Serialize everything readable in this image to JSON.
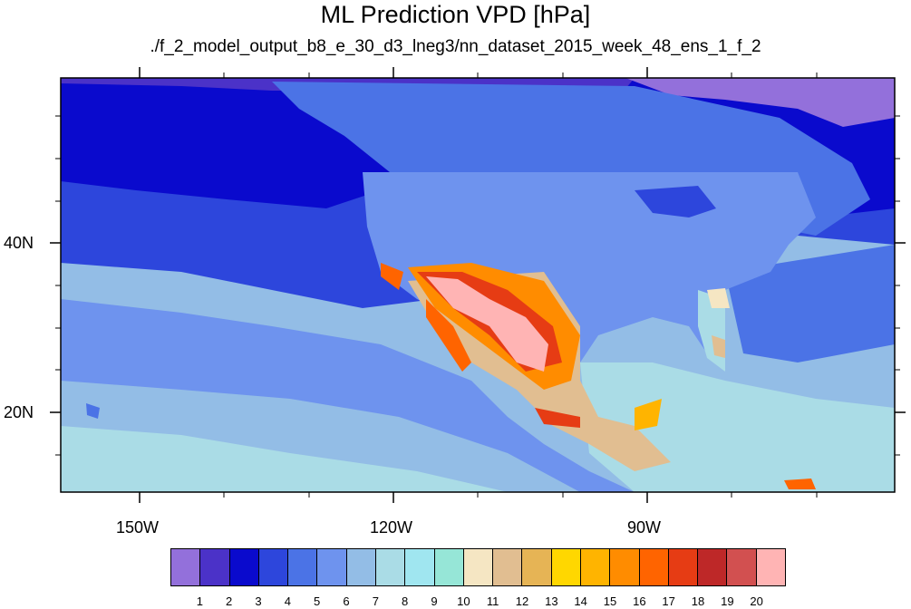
{
  "title": "ML Prediction VPD [hPa]",
  "subtitle": "./f_2_model_output_b8_e_30_d3_lneg3/nn_dataset_2015_week_48_ens_1_f_2",
  "map": {
    "lon_range": [
      -160,
      -64
    ],
    "lat_range": [
      10,
      59
    ],
    "x_ticks": [
      {
        "lon": -150,
        "label": "150W"
      },
      {
        "lon": -120,
        "label": "120W"
      },
      {
        "lon": -90,
        "label": "90W"
      }
    ],
    "y_ticks": [
      {
        "lat": 40,
        "label": "40N"
      },
      {
        "lat": 20,
        "label": "20N"
      }
    ]
  },
  "colorbar": {
    "colors": [
      "#9370db",
      "#4b32c8",
      "#0a0acd",
      "#2d46dc",
      "#4b73e6",
      "#6e93ee",
      "#93bde6",
      "#aadce6",
      "#a0e6f0",
      "#96e6d7",
      "#f5e6c3",
      "#e1be91",
      "#e6b455",
      "#ffd700",
      "#ffb400",
      "#ff8c00",
      "#ff6400",
      "#e63c14",
      "#be2828",
      "#d25050",
      "#ffb4b4"
    ],
    "labels": [
      "1",
      "2",
      "3",
      "4",
      "5",
      "6",
      "7",
      "8",
      "9",
      "10",
      "11",
      "12",
      "13",
      "14",
      "15",
      "16",
      "17",
      "18",
      "19",
      "20"
    ]
  }
}
